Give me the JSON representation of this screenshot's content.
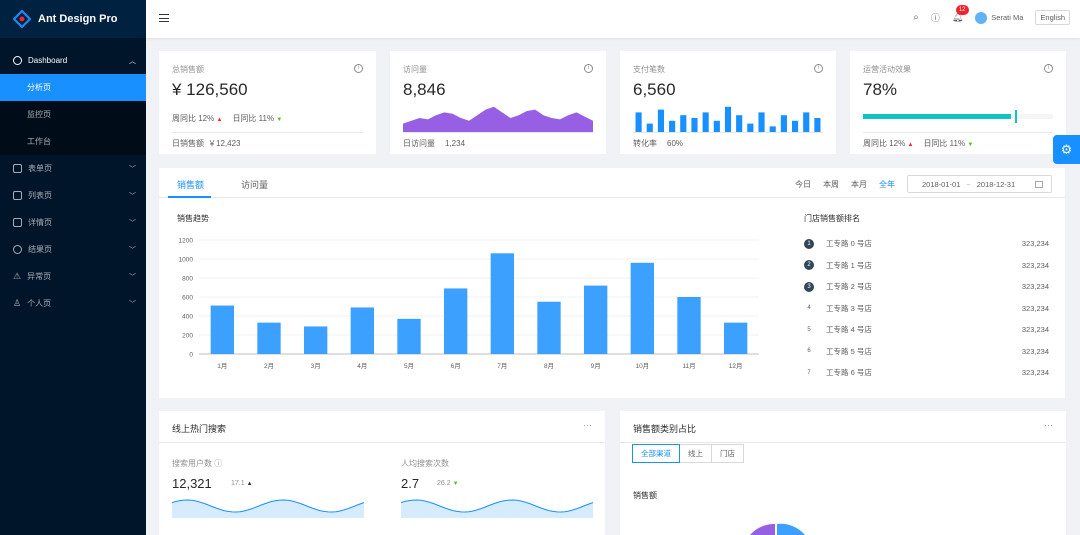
{
  "app": {
    "title": "Ant Design Pro"
  },
  "sidebar": {
    "items": [
      {
        "label": "Dashboard",
        "icon": "dashboard-icon",
        "open": true
      },
      {
        "label": "表单页",
        "icon": "form-icon"
      },
      {
        "label": "列表页",
        "icon": "table-icon"
      },
      {
        "label": "详情页",
        "icon": "profile-icon"
      },
      {
        "label": "结果页",
        "icon": "check-circle-icon"
      },
      {
        "label": "异常页",
        "icon": "warning-icon"
      },
      {
        "label": "个人页",
        "icon": "user-icon"
      }
    ],
    "dashboard_children": [
      {
        "label": "分析页",
        "selected": true
      },
      {
        "label": "监控页"
      },
      {
        "label": "工作台"
      }
    ]
  },
  "header": {
    "notice_count": "12",
    "user_name": "Serati Ma",
    "lang": "English"
  },
  "kpis": {
    "sales": {
      "label": "总销售额",
      "value": "¥ 126,560",
      "wow_label": "周同比",
      "wow": "12%",
      "dod_label": "日同比",
      "dod": "11%",
      "foot_label": "日销售额",
      "foot_value": "￥12,423"
    },
    "visits": {
      "label": "访问量",
      "value": "8,846",
      "foot_label": "日访问量",
      "foot_value": "1,234",
      "area": [
        3,
        4,
        5,
        4.5,
        6,
        7,
        6.5,
        5,
        4,
        6,
        8,
        9,
        7,
        5,
        6,
        7.5,
        8,
        6,
        5,
        4.5,
        6,
        7,
        5.5,
        4
      ]
    },
    "payments": {
      "label": "支付笔数",
      "value": "6,560",
      "foot_label": "转化率",
      "foot_value": "60%",
      "bars": [
        7,
        3,
        8,
        4,
        6,
        5,
        7,
        4,
        9,
        6,
        3,
        7,
        2,
        6,
        4,
        7,
        5
      ]
    },
    "campaign": {
      "label": "运营活动效果",
      "value": "78%",
      "progress": 0.78,
      "target": 0.8,
      "wow_label": "周同比",
      "wow": "12%",
      "dod_label": "日同比",
      "dod": "11%"
    }
  },
  "sales_card": {
    "tabs": [
      "销售额",
      "访问量"
    ],
    "ranges": [
      "今日",
      "本周",
      "本月",
      "全年"
    ],
    "date_start": "2018-01-01",
    "date_sep": "~",
    "date_end": "2018-12-31",
    "trend_title": "销售趋势",
    "rank_title": "门店销售额排名",
    "rank": [
      {
        "num": "1",
        "name": "工专路 0 号店",
        "value": "323,234"
      },
      {
        "num": "2",
        "name": "工专路 1 号店",
        "value": "323,234"
      },
      {
        "num": "3",
        "name": "工专路 2 号店",
        "value": "323,234"
      },
      {
        "num": "4",
        "name": "工专路 3 号店",
        "value": "323,234"
      },
      {
        "num": "5",
        "name": "工专路 4 号店",
        "value": "323,234"
      },
      {
        "num": "6",
        "name": "工专路 5 号店",
        "value": "323,234"
      },
      {
        "num": "7",
        "name": "工专路 6 号店",
        "value": "323,234"
      }
    ]
  },
  "chart_data": {
    "type": "bar",
    "categories": [
      "1月",
      "2月",
      "3月",
      "4月",
      "5月",
      "6月",
      "7月",
      "8月",
      "9月",
      "10月",
      "11月",
      "12月"
    ],
    "values": [
      510,
      330,
      290,
      490,
      370,
      690,
      1060,
      550,
      720,
      960,
      600,
      330
    ],
    "yticks": [
      "0",
      "200",
      "400",
      "600",
      "800",
      "1000",
      "1200"
    ],
    "ylim": [
      0,
      1200
    ],
    "color": "#3ba0ff"
  },
  "hot_search": {
    "title": "线上热门搜索",
    "users_label": "搜索用户数",
    "users_value": "12,321",
    "users_change": "17.1",
    "per_label": "人均搜索次数",
    "per_value": "2.7",
    "per_change": "26.2"
  },
  "category": {
    "title": "销售额类别占比",
    "channels": [
      "全部渠道",
      "线上",
      "门店"
    ],
    "section_label": "销售额"
  },
  "colors": {
    "primary": "#1890ff",
    "sider": "#001529",
    "area": "#975fe4",
    "progress": "#13c2c2"
  }
}
